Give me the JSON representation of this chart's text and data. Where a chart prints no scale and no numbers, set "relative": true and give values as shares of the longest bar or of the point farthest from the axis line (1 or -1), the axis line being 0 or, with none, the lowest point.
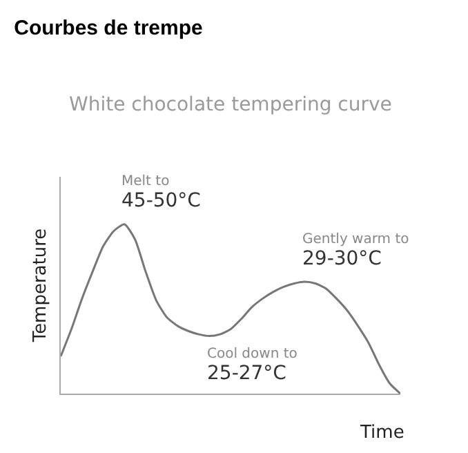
{
  "chart_data": {
    "type": "line",
    "title": "Courbes de trempe",
    "subtitle": "White chocolate tempering curve",
    "xlabel": "Time",
    "ylabel": "Temperature",
    "relative": true,
    "categories": [
      null,
      null,
      null,
      null,
      null,
      null,
      null,
      null,
      null,
      null,
      null,
      null,
      null,
      null,
      null,
      null,
      null,
      null,
      null,
      null,
      null,
      null,
      null,
      null,
      null,
      null,
      null,
      null,
      null,
      null,
      null,
      null,
      null
    ],
    "series": [
      {
        "color": "#777777",
        "values": [
          0.22,
          0.38,
          0.56,
          0.72,
          0.87,
          0.96,
          1.0,
          0.91,
          0.72,
          0.55,
          0.45,
          0.4,
          0.37,
          0.35,
          0.34,
          0.35,
          0.38,
          0.44,
          0.51,
          0.56,
          0.6,
          0.63,
          0.65,
          0.66,
          0.65,
          0.62,
          0.56,
          0.49,
          0.4,
          0.3,
          0.17,
          0.06,
          0
        ]
      }
    ],
    "annotations": [
      "Melt to\n45-50°C",
      "Cool down to\n25-27°C",
      "Gently warm to\n29-30°C"
    ],
    "line_style": "solid"
  }
}
